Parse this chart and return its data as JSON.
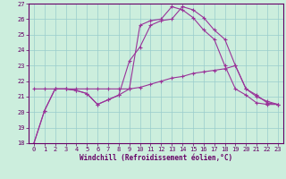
{
  "title": "",
  "xlabel": "Windchill (Refroidissement éolien,°C)",
  "background_color": "#cceedd",
  "line_color": "#993399",
  "grid_color": "#99cccc",
  "xlim": [
    -0.5,
    23.5
  ],
  "ylim": [
    18,
    27
  ],
  "yticks": [
    18,
    19,
    20,
    21,
    22,
    23,
    24,
    25,
    26,
    27
  ],
  "xticks": [
    0,
    1,
    2,
    3,
    4,
    5,
    6,
    7,
    8,
    9,
    10,
    11,
    12,
    13,
    14,
    15,
    16,
    17,
    18,
    19,
    20,
    21,
    22,
    23
  ],
  "line1_x": [
    0,
    1,
    2,
    3,
    4,
    5,
    6,
    7,
    8,
    9,
    10,
    11,
    12,
    13,
    14,
    15,
    16,
    17,
    18,
    19,
    20,
    21,
    22,
    23
  ],
  "line1_y": [
    18.0,
    20.1,
    21.5,
    21.5,
    21.4,
    21.2,
    20.5,
    20.8,
    21.1,
    21.5,
    25.6,
    25.9,
    26.0,
    26.8,
    26.6,
    26.1,
    25.3,
    24.7,
    23.0,
    21.5,
    21.1,
    20.6,
    20.5,
    20.5
  ],
  "line2_x": [
    0,
    1,
    2,
    3,
    4,
    5,
    6,
    7,
    8,
    9,
    10,
    11,
    12,
    13,
    14,
    15,
    16,
    17,
    18,
    19,
    20,
    21,
    22,
    23
  ],
  "line2_y": [
    21.5,
    21.5,
    21.5,
    21.5,
    21.5,
    21.5,
    21.5,
    21.5,
    21.5,
    21.5,
    21.6,
    21.8,
    22.0,
    22.2,
    22.3,
    22.5,
    22.6,
    22.7,
    22.8,
    23.0,
    21.5,
    21.0,
    20.7,
    20.5
  ],
  "line3_x": [
    0,
    1,
    2,
    3,
    4,
    5,
    6,
    7,
    8,
    9,
    10,
    11,
    12,
    13,
    14,
    15,
    16,
    17,
    18,
    19,
    20,
    21,
    22,
    23
  ],
  "line3_y": [
    18.0,
    20.1,
    21.5,
    21.5,
    21.4,
    21.2,
    20.5,
    20.8,
    21.1,
    23.3,
    24.2,
    25.6,
    25.9,
    26.0,
    26.8,
    26.6,
    26.1,
    25.3,
    24.7,
    23.0,
    21.5,
    21.1,
    20.6,
    20.5
  ]
}
